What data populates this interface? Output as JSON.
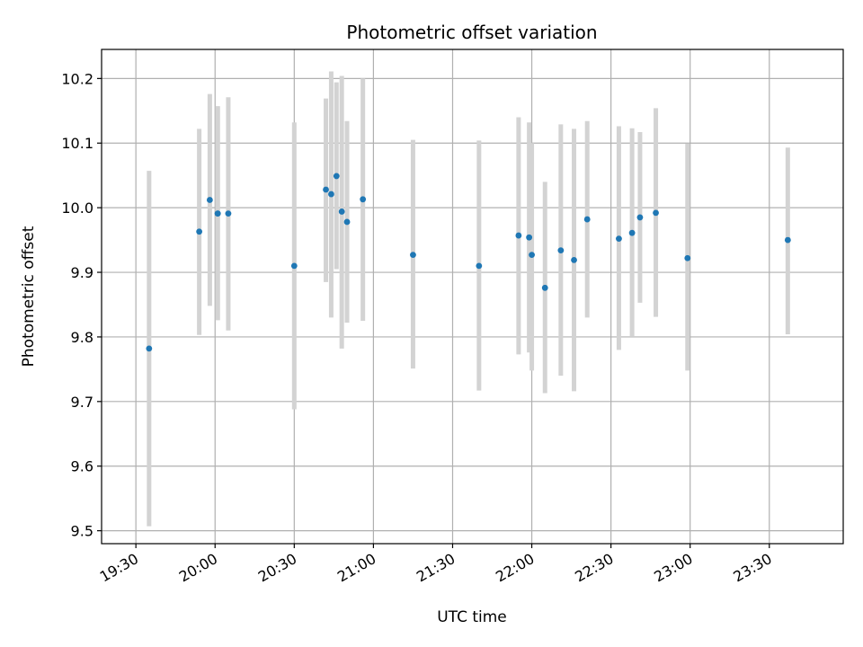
{
  "chart_data": {
    "type": "scatter",
    "title": "Photometric offset variation",
    "xlabel": "UTC time",
    "ylabel": "Photometric offset",
    "x_unit": "minutes of day (UTC)",
    "xlim": [
      "19:17",
      "23:58"
    ],
    "ylim": [
      9.48,
      10.245
    ],
    "x_ticks": [
      "19:30",
      "20:00",
      "20:30",
      "21:00",
      "21:30",
      "22:00",
      "22:30",
      "23:00",
      "23:30"
    ],
    "y_ticks": [
      "9.5",
      "9.6",
      "9.7",
      "9.8",
      "9.9",
      "10.0",
      "10.1",
      "10.2"
    ],
    "grid": true,
    "colors": {
      "point": "#1f77b4",
      "errorbar": "#d3d3d3",
      "grid": "#b0b0b0"
    },
    "series": [
      {
        "points": [
          {
            "t": "19:35",
            "y": 9.782,
            "lo": 9.507,
            "hi": 10.057
          },
          {
            "t": "19:54",
            "y": 9.963,
            "lo": 9.803,
            "hi": 10.122
          },
          {
            "t": "19:58",
            "y": 10.012,
            "lo": 9.848,
            "hi": 10.176
          },
          {
            "t": "20:01",
            "y": 9.991,
            "lo": 9.826,
            "hi": 10.157
          },
          {
            "t": "20:01",
            "y": 9.991,
            "lo": 9.826,
            "hi": 10.157
          },
          {
            "t": "20:05",
            "y": 9.991,
            "lo": 9.81,
            "hi": 10.171
          },
          {
            "t": "20:30",
            "y": 9.91,
            "lo": 9.688,
            "hi": 10.132
          },
          {
            "t": "20:42",
            "y": 10.028,
            "lo": 9.885,
            "hi": 10.169
          },
          {
            "t": "20:44",
            "y": 10.021,
            "lo": 9.83,
            "hi": 10.211
          },
          {
            "t": "20:46",
            "y": 10.049,
            "lo": 9.905,
            "hi": 10.194
          },
          {
            "t": "20:48",
            "y": 9.994,
            "lo": 9.782,
            "hi": 10.204
          },
          {
            "t": "20:50",
            "y": 9.978,
            "lo": 9.822,
            "hi": 10.134
          },
          {
            "t": "20:56",
            "y": 10.013,
            "lo": 9.825,
            "hi": 10.2
          },
          {
            "t": "21:15",
            "y": 9.927,
            "lo": 9.751,
            "hi": 10.105
          },
          {
            "t": "21:40",
            "y": 9.91,
            "lo": 9.717,
            "hi": 10.104
          },
          {
            "t": "21:55",
            "y": 9.957,
            "lo": 9.773,
            "hi": 10.14
          },
          {
            "t": "21:59",
            "y": 9.954,
            "lo": 9.776,
            "hi": 10.132
          },
          {
            "t": "22:00",
            "y": 9.927,
            "lo": 9.748,
            "hi": 10.1
          },
          {
            "t": "22:05",
            "y": 9.876,
            "lo": 9.713,
            "hi": 10.04
          },
          {
            "t": "22:11",
            "y": 9.934,
            "lo": 9.74,
            "hi": 10.129
          },
          {
            "t": "22:16",
            "y": 9.919,
            "lo": 9.716,
            "hi": 10.122
          },
          {
            "t": "22:21",
            "y": 9.982,
            "lo": 9.83,
            "hi": 10.134
          },
          {
            "t": "22:33",
            "y": 9.952,
            "lo": 9.78,
            "hi": 10.126
          },
          {
            "t": "22:38",
            "y": 9.961,
            "lo": 9.8,
            "hi": 10.123
          },
          {
            "t": "22:41",
            "y": 9.985,
            "lo": 9.853,
            "hi": 10.117
          },
          {
            "t": "22:47",
            "y": 9.992,
            "lo": 9.831,
            "hi": 10.154
          },
          {
            "t": "22:59",
            "y": 9.922,
            "lo": 9.748,
            "hi": 10.099
          },
          {
            "t": "23:37",
            "y": 9.95,
            "lo": 9.804,
            "hi": 10.093
          }
        ]
      }
    ]
  }
}
